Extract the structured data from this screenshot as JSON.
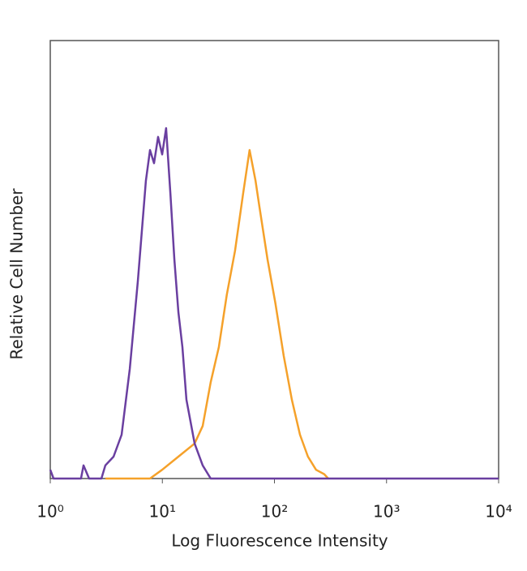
{
  "chart_data": {
    "type": "line",
    "x_label": "Log Fluorescence Intensity",
    "y_label": "Relative Cell Number",
    "xscale": "log",
    "xlim": [
      1,
      10000
    ],
    "xticks": [
      {
        "value": 1,
        "label": "10⁰"
      },
      {
        "value": 10,
        "label": "10¹"
      },
      {
        "value": 100,
        "label": "10²"
      },
      {
        "value": 1000,
        "label": "10³"
      },
      {
        "value": 10000,
        "label": "10⁴"
      }
    ],
    "ylim": [
      0,
      100
    ],
    "series": [
      {
        "color": "#6a3fa0",
        "x": [
          1,
          1.07,
          1.88,
          1.98,
          2.22,
          2.86,
          3.1,
          3.67,
          4.33,
          5.12,
          6.04,
          7.13,
          7.76,
          8.43,
          9.16,
          9.96,
          10.8,
          11.8,
          12.8,
          13.9,
          15.1,
          16.4,
          19.4,
          22.9,
          27.0,
          10000
        ],
        "values": [
          2,
          0,
          0,
          3,
          0,
          0,
          3,
          5,
          10,
          25,
          45,
          68,
          75,
          72,
          78,
          74,
          80,
          65,
          50,
          38,
          30,
          18,
          8,
          3,
          0,
          0
        ]
      },
      {
        "color": "#f5a12a",
        "x": [
          3.1,
          7.76,
          9.96,
          13.9,
          19.4,
          22.9,
          27.0,
          31.9,
          37.6,
          44.5,
          52.5,
          60.0,
          67.8,
          73.5,
          86.8,
          102,
          121,
          143,
          169,
          199,
          235,
          278,
          302
        ],
        "values": [
          0,
          0,
          2,
          5,
          8,
          12,
          22,
          30,
          42,
          52,
          65,
          75,
          68,
          62,
          50,
          40,
          28,
          18,
          10,
          5,
          2,
          1,
          0
        ]
      }
    ]
  }
}
